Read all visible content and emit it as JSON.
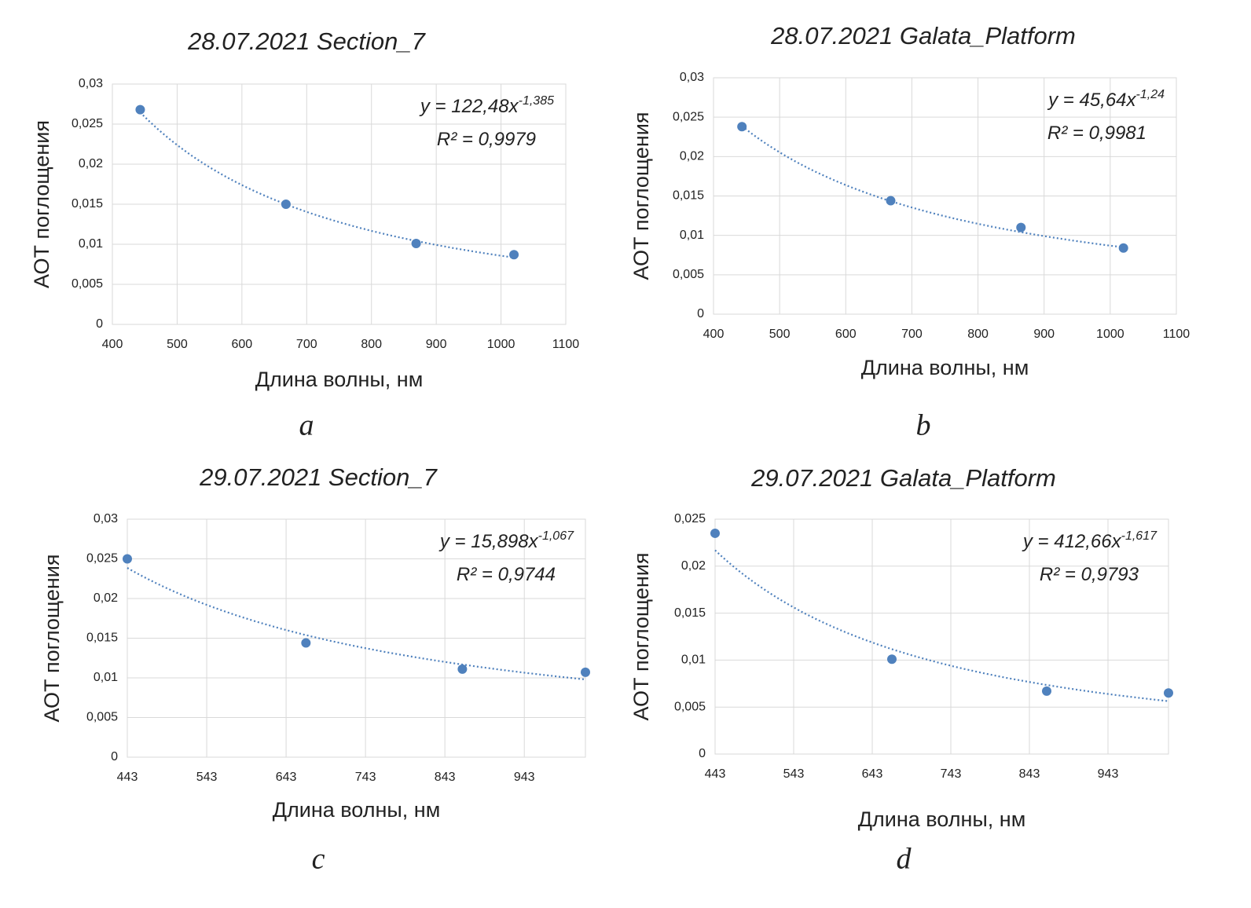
{
  "chart_data": [
    {
      "type": "scatter",
      "title": "28.07.2021 Section_7",
      "x_label": "Длина волны, нм",
      "y_label": "АОТ поглощения",
      "panel_label": "a",
      "color": "#4f81bd",
      "grid": true,
      "x": [
        443,
        668,
        869,
        1020
      ],
      "y": [
        0.0268,
        0.015,
        0.0101,
        0.0087
      ],
      "xlim": [
        400,
        1100
      ],
      "xticks": [
        400,
        500,
        600,
        700,
        800,
        900,
        1000,
        1100
      ],
      "ylim": [
        0,
        0.03
      ],
      "yticks": [
        0,
        {
          "value": 0.005,
          "label": "0,005"
        },
        {
          "value": 0.01,
          "label": "0,01"
        },
        {
          "value": 0.015,
          "label": "0,015"
        },
        {
          "value": 0.02,
          "label": "0,02"
        },
        {
          "value": 0.025,
          "label": "0,025"
        },
        {
          "value": 0.03,
          "label": "0,03"
        }
      ],
      "trendline": {
        "prefix": "y = ",
        "coef": {
          "value": 122.48,
          "label": "122,48"
        },
        "var": "x",
        "exponent": {
          "value": -1.385,
          "label": "-1,385"
        },
        "r2_prefix": "R² = ",
        "r2": {
          "value": 0.9979,
          "label": "0,9979"
        }
      }
    },
    {
      "type": "scatter",
      "title": "28.07.2021 Galata_Platform",
      "x_label": "Длина волны, нм",
      "y_label": "АОТ поглощения",
      "panel_label": "b",
      "color": "#4f81bd",
      "grid": true,
      "x": [
        443,
        668,
        865,
        1020
      ],
      "y": [
        0.0238,
        0.0144,
        0.011,
        0.0084
      ],
      "xlim": [
        400,
        1100
      ],
      "xticks": [
        400,
        500,
        600,
        700,
        800,
        900,
        1000,
        1100
      ],
      "ylim": [
        0,
        0.03
      ],
      "yticks": [
        0,
        {
          "value": 0.005,
          "label": "0,005"
        },
        {
          "value": 0.01,
          "label": "0,01"
        },
        {
          "value": 0.015,
          "label": "0,015"
        },
        {
          "value": 0.02,
          "label": "0,02"
        },
        {
          "value": 0.025,
          "label": "0,025"
        },
        {
          "value": 0.03,
          "label": "0,03"
        }
      ],
      "trendline": {
        "prefix": "y = ",
        "coef": {
          "value": 45.64,
          "label": "45,64"
        },
        "var": "x",
        "exponent": {
          "value": -1.24,
          "label": "-1,24"
        },
        "r2_prefix": "R² = ",
        "r2": {
          "value": 0.9981,
          "label": "0,9981"
        }
      }
    },
    {
      "type": "scatter",
      "title": "29.07.2021 Section_7",
      "x_label": "Длина волны, нм",
      "y_label": "АОТ поглощения",
      "panel_label": "c",
      "color": "#4f81bd",
      "grid": true,
      "x": [
        443,
        668,
        865,
        1020
      ],
      "y": [
        0.025,
        0.0144,
        0.0111,
        0.0107
      ],
      "xlim": [
        443,
        1020
      ],
      "xticks": [
        443,
        543,
        643,
        743,
        843,
        943
      ],
      "ylim": [
        0,
        0.03
      ],
      "yticks": [
        0,
        {
          "value": 0.005,
          "label": "0,005"
        },
        {
          "value": 0.01,
          "label": "0,01"
        },
        {
          "value": 0.015,
          "label": "0,015"
        },
        {
          "value": 0.02,
          "label": "0,02"
        },
        {
          "value": 0.025,
          "label": "0,025"
        },
        {
          "value": 0.03,
          "label": "0,03"
        }
      ],
      "trendline": {
        "prefix": "y = ",
        "coef": {
          "value": 15.898,
          "label": "15,898"
        },
        "var": "x",
        "exponent": {
          "value": -1.067,
          "label": "-1,067"
        },
        "r2_prefix": "R² = ",
        "r2": {
          "value": 0.9744,
          "label": "0,9744"
        }
      }
    },
    {
      "type": "scatter",
      "title": "29.07.2021 Galata_Platform",
      "x_label": "Длина волны, нм",
      "y_label": "АОТ поглощения",
      "panel_label": "d",
      "color": "#4f81bd",
      "grid": true,
      "x": [
        443,
        668,
        865,
        1020
      ],
      "y": [
        0.0235,
        0.0101,
        0.0067,
        0.0065
      ],
      "xlim": [
        443,
        1020
      ],
      "xticks": [
        443,
        543,
        643,
        743,
        843,
        943
      ],
      "ylim": [
        0,
        0.025
      ],
      "yticks": [
        0,
        {
          "value": 0.005,
          "label": "0,005"
        },
        {
          "value": 0.01,
          "label": "0,01"
        },
        {
          "value": 0.015,
          "label": "0,015"
        },
        {
          "value": 0.02,
          "label": "0,02"
        },
        {
          "value": 0.025,
          "label": "0,025"
        }
      ],
      "trendline": {
        "prefix": "y = ",
        "coef": {
          "value": 412.66,
          "label": "412,66"
        },
        "var": "x",
        "exponent": {
          "value": -1.617,
          "label": "-1,617"
        },
        "r2_prefix": "R² = ",
        "r2": {
          "value": 0.9793,
          "label": "0,9793"
        }
      }
    }
  ]
}
